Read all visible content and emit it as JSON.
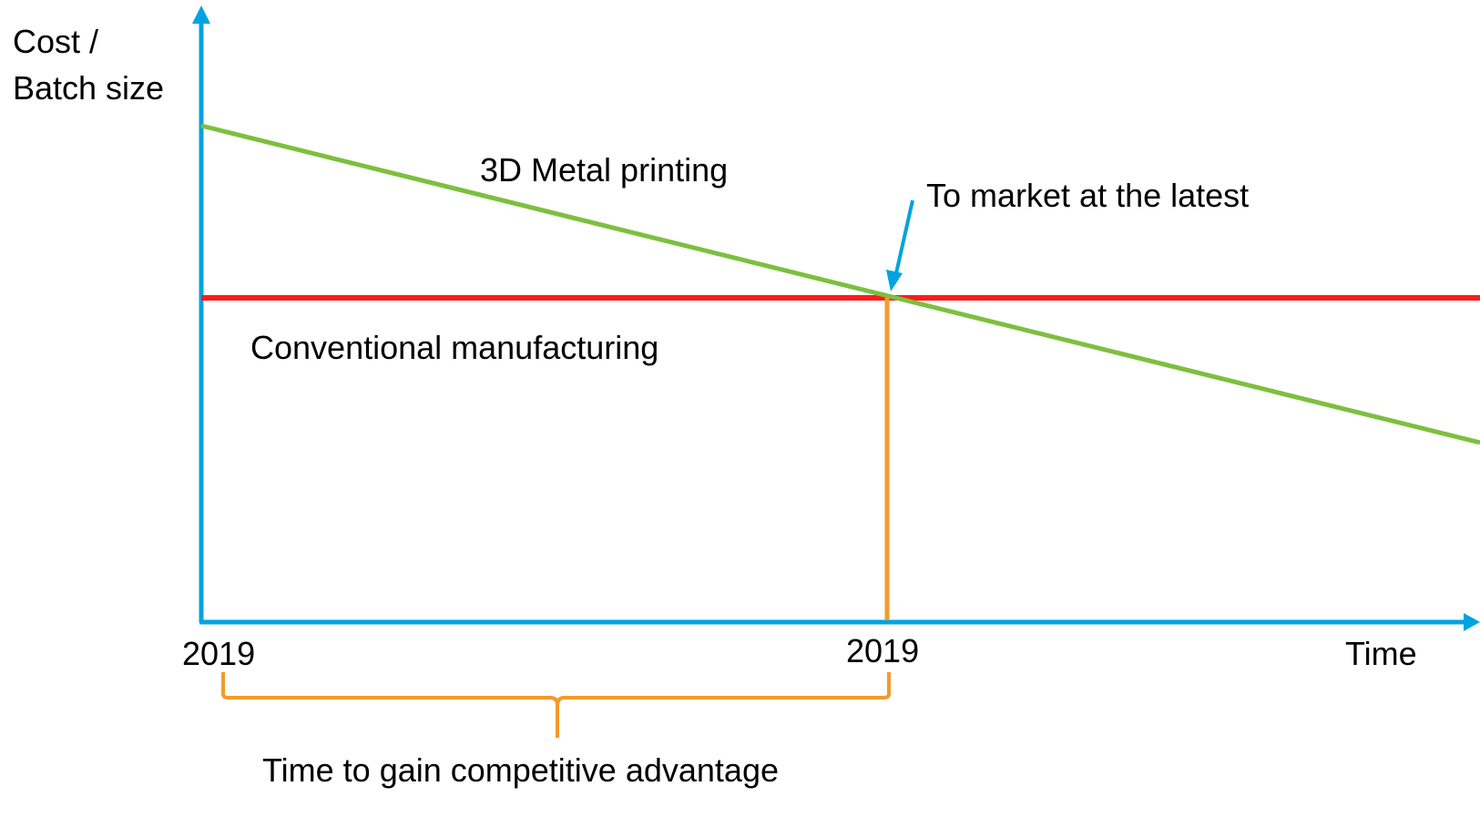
{
  "diagram": {
    "y_axis_label_line1": "Cost /",
    "y_axis_label_line2": "Batch size",
    "x_axis_label": "Time",
    "x_tick_start": "2019",
    "x_tick_cross": "2019",
    "line_3d_label": "3D Metal printing",
    "line_conventional_label": "Conventional manufacturing",
    "crossover_label": "To market at the latest",
    "brace_label": "Time to gain competitive advantage"
  },
  "colors": {
    "axis": "#00a3e0",
    "line_3d": "#7dbf3f",
    "line_conventional": "#ff1a1a",
    "marker": "#f39a2a",
    "arrow": "#00a3e0"
  }
}
